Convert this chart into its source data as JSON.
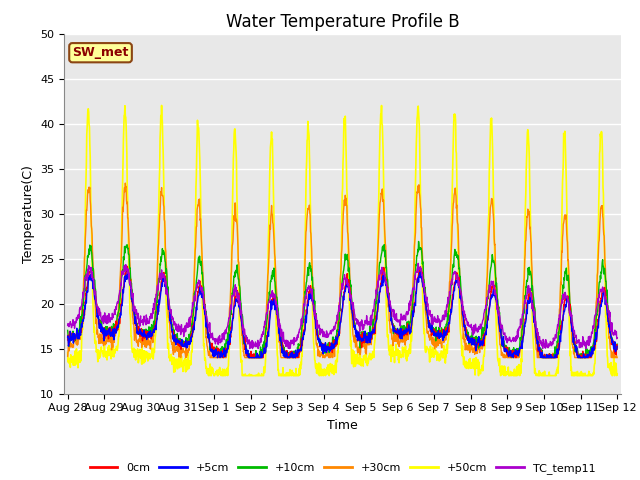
{
  "title": "Water Temperature Profile B",
  "xlabel": "Time",
  "ylabel": "Temperature(C)",
  "ylim": [
    10,
    50
  ],
  "xtick_labels": [
    "Aug 28",
    "Aug 29",
    "Aug 30",
    "Aug 31",
    "Sep 1",
    "Sep 2",
    "Sep 3",
    "Sep 4",
    "Sep 5",
    "Sep 6",
    "Sep 7",
    "Sep 8",
    "Sep 9",
    "Sep 10",
    "Sep 11",
    "Sep 12"
  ],
  "annotation_text": "SW_met",
  "annotation_color": "#8B0000",
  "annotation_bg": "#FFFF99",
  "annotation_border": "#8B4513",
  "series": [
    {
      "label": "0cm",
      "color": "#FF0000",
      "lw": 1.0
    },
    {
      "label": "+5cm",
      "color": "#0000FF",
      "lw": 1.0
    },
    {
      "label": "+10cm",
      "color": "#00BB00",
      "lw": 1.0
    },
    {
      "label": "+30cm",
      "color": "#FF8800",
      "lw": 1.0
    },
    {
      "label": "+50cm",
      "color": "#FFFF00",
      "lw": 1.2
    },
    {
      "label": "TC_temp11",
      "color": "#AA00CC",
      "lw": 1.0
    }
  ],
  "bg_color": "#E8E8E8",
  "grid_color": "#FFFFFF",
  "yticks": [
    10,
    15,
    20,
    25,
    30,
    35,
    40,
    45,
    50
  ],
  "title_fontsize": 12,
  "axis_fontsize": 9,
  "tick_fontsize": 8,
  "legend_fontsize": 8
}
